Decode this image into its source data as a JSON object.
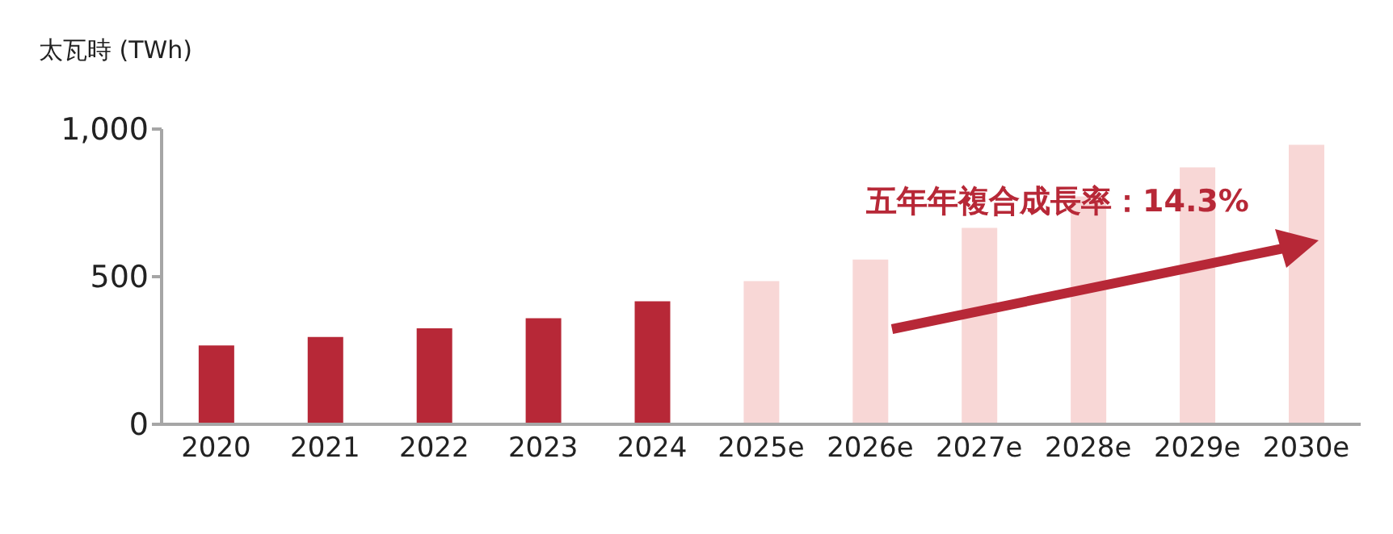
{
  "chart_data": {
    "type": "bar",
    "ylabel": "太瓦時 (TWh)",
    "categories": [
      "2020",
      "2021",
      "2022",
      "2023",
      "2024",
      "2025e",
      "2026e",
      "2027e",
      "2028e",
      "2029e",
      "2030e"
    ],
    "values": [
      267,
      296,
      325,
      359,
      417,
      485,
      558,
      665,
      772,
      870,
      947
    ],
    "colors": [
      "#b72837",
      "#b72837",
      "#b72837",
      "#b72837",
      "#b72837",
      "#f8d7d6",
      "#f8d7d6",
      "#f8d7d6",
      "#f8d7d6",
      "#f8d7d6",
      "#f8d7d6"
    ],
    "ylim": [
      0,
      1000
    ],
    "yticks": [
      0,
      {
        "value": 500,
        "label": "500"
      },
      {
        "value": 1000,
        "label": "1,000"
      }
    ],
    "annotations": [
      "五年年複合成長率：14.3%"
    ],
    "grid": false,
    "legend": false
  }
}
